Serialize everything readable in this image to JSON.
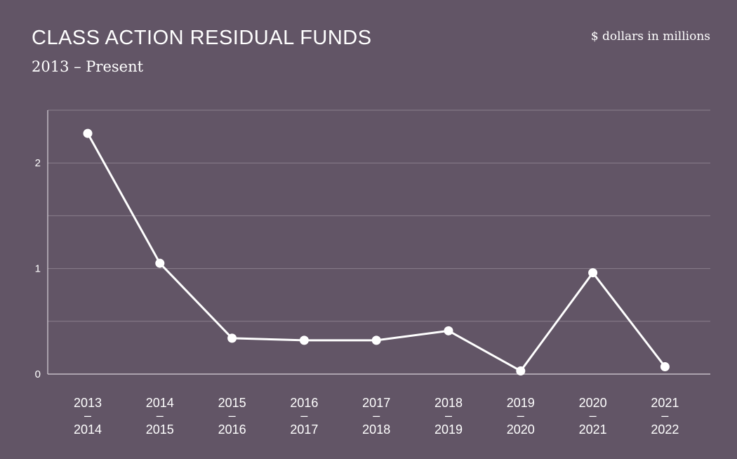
{
  "chart_data": {
    "type": "line",
    "title": "CLASS ACTION RESIDUAL FUNDS",
    "subtitle": "2013 – Present",
    "unit_label": "$ dollars in millions",
    "xlabel": "",
    "ylabel": "",
    "categories": [
      [
        "2013",
        "–",
        "2014"
      ],
      [
        "2014",
        "–",
        "2015"
      ],
      [
        "2015",
        "–",
        "2016"
      ],
      [
        "2016",
        "–",
        "2017"
      ],
      [
        "2017",
        "–",
        "2018"
      ],
      [
        "2018",
        "–",
        "2019"
      ],
      [
        "2019",
        "–",
        "2020"
      ],
      [
        "2020",
        "–",
        "2021"
      ],
      [
        "2021",
        "–",
        "2022"
      ]
    ],
    "values": [
      2.28,
      1.05,
      0.34,
      0.32,
      0.32,
      0.41,
      0.03,
      0.96,
      0.07
    ],
    "ylim": [
      0,
      2.5
    ],
    "yticks": [
      {
        "value": 0,
        "label": "0"
      },
      {
        "value": 1,
        "label": "1"
      },
      {
        "value": 2,
        "label": "2"
      }
    ],
    "gridlines": [
      0.5,
      1,
      1.5,
      2,
      2.5
    ],
    "grid": true,
    "legend": "none",
    "colors": {
      "background": "#625566",
      "line": "#ffffff",
      "grid": "#8a7e8c",
      "axis": "#d8d2d9"
    }
  }
}
